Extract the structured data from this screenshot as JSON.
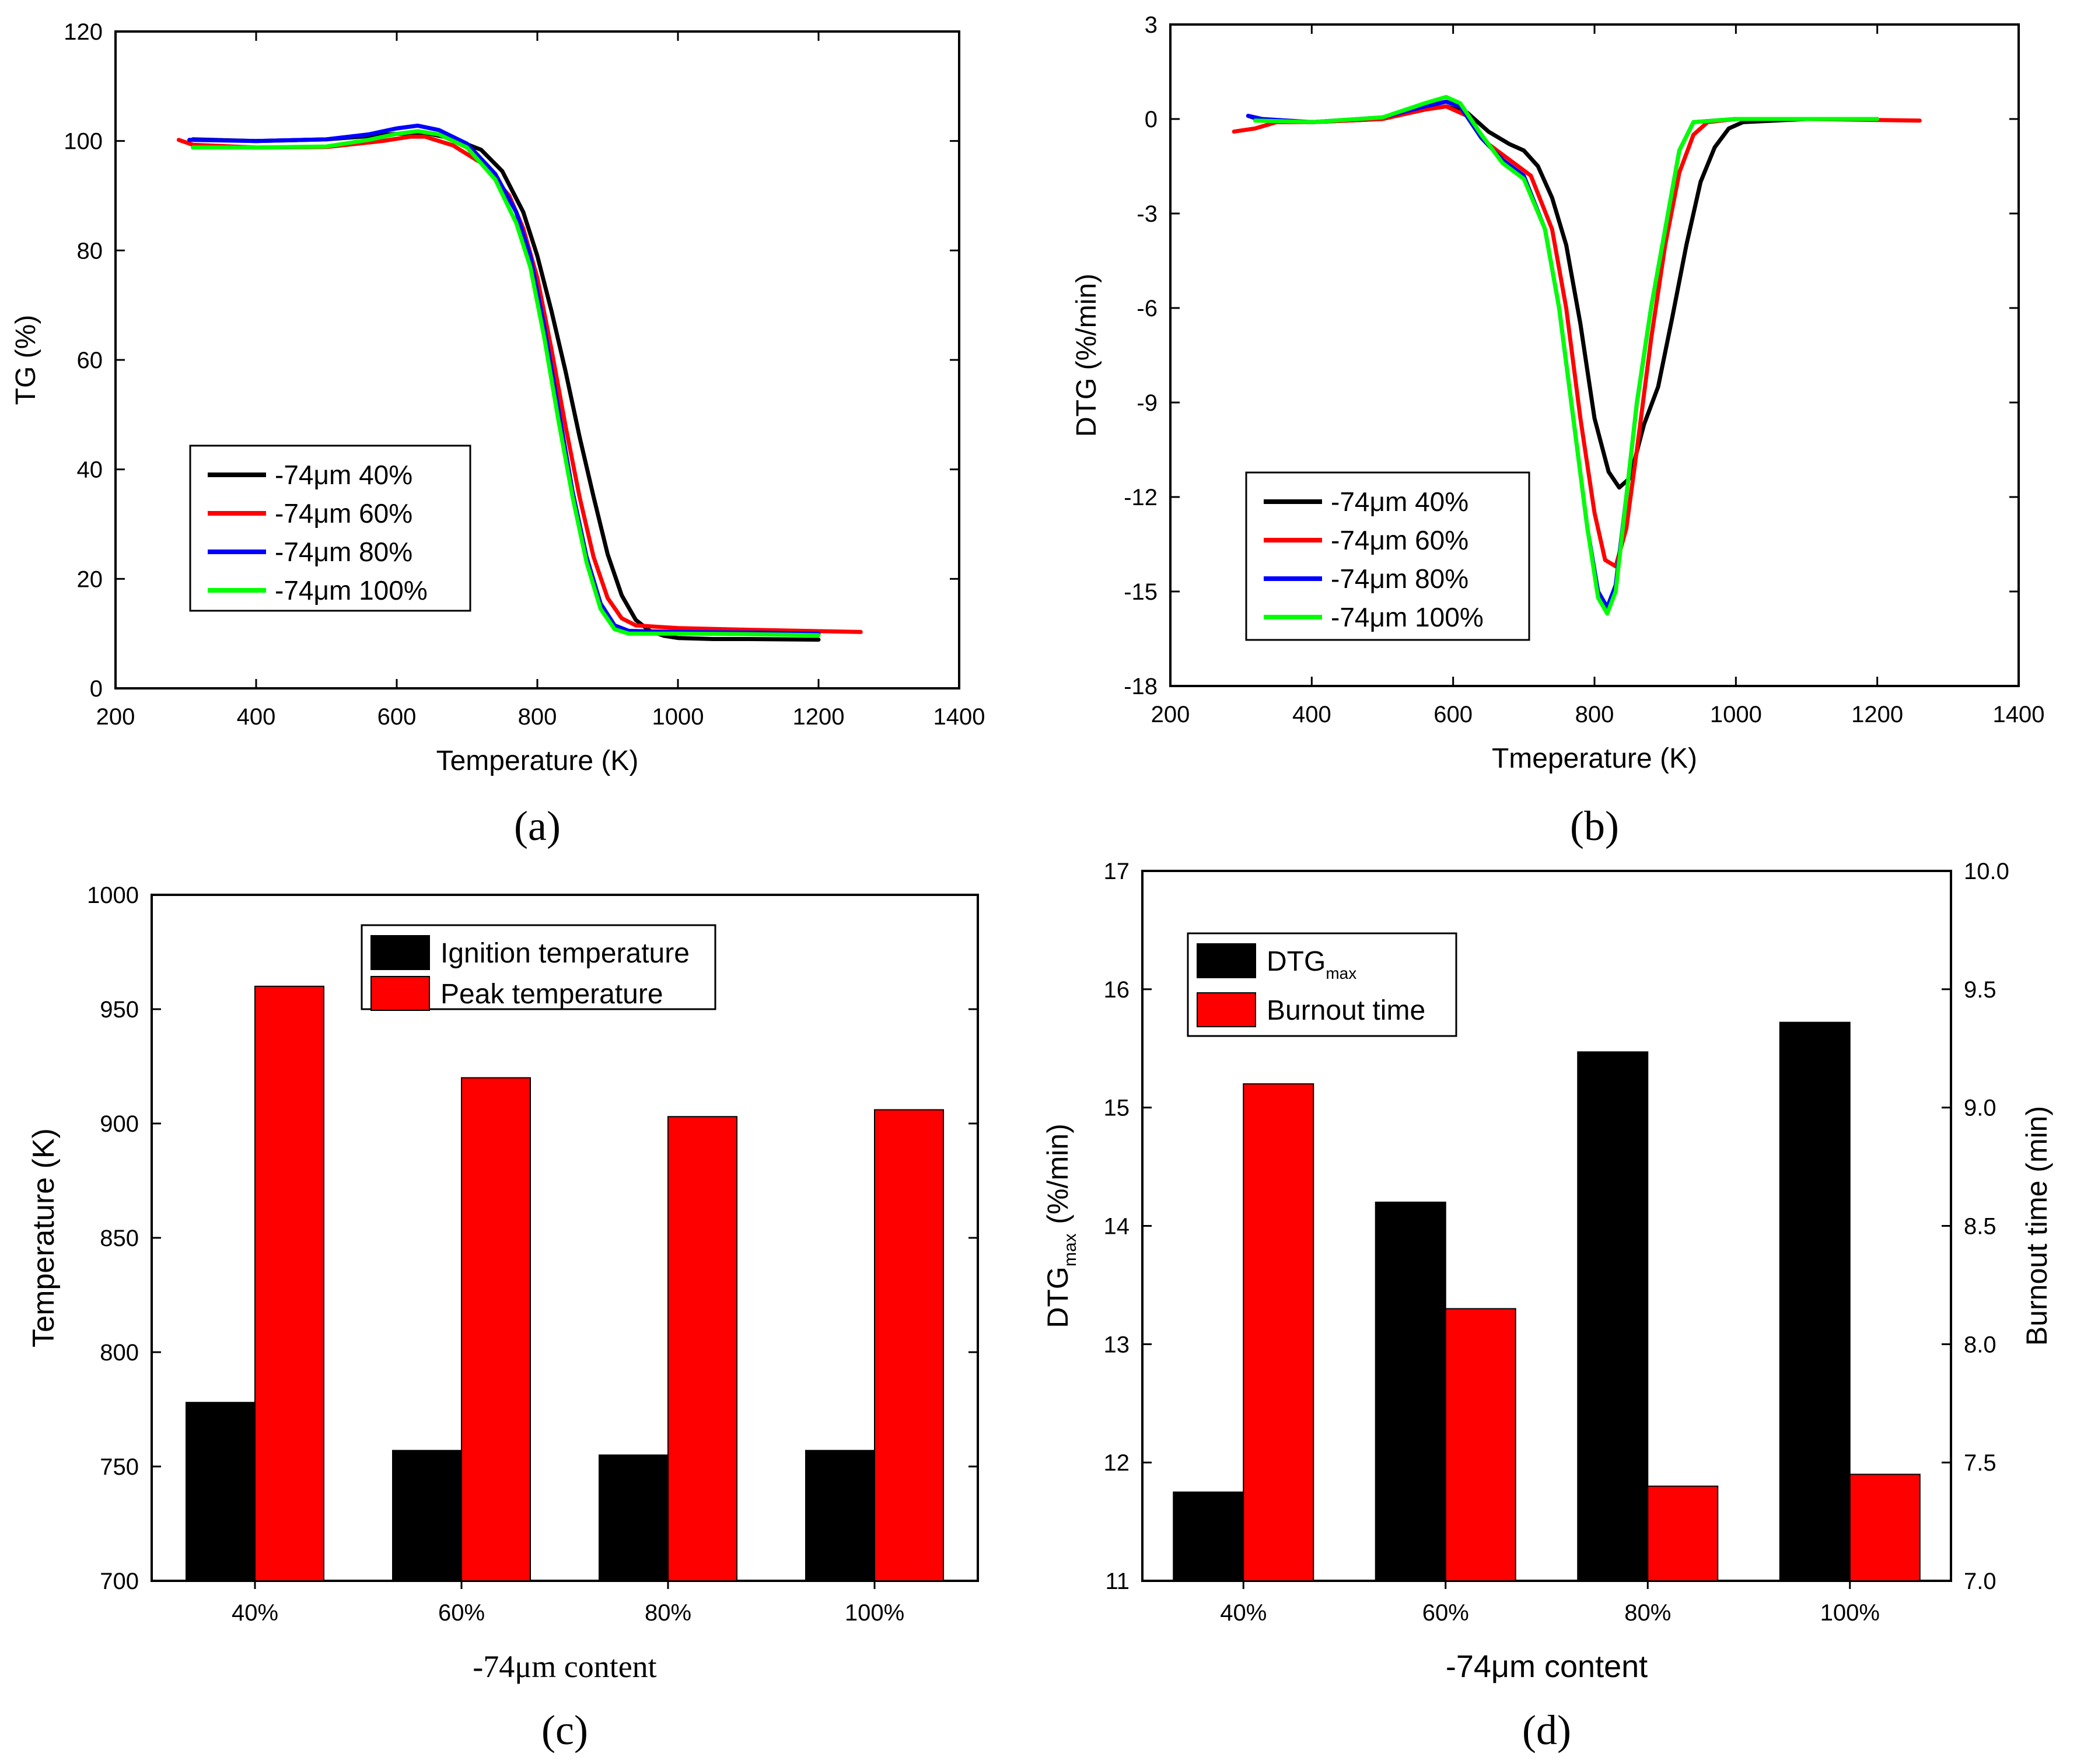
{
  "charts": [
    {
      "type": "line",
      "panel_label": "(a)",
      "xlabel": "Temperature (K)",
      "ylabel": "TG (%)",
      "xlim": [
        200,
        1400
      ],
      "ylim": [
        0,
        120
      ],
      "xticks": [
        200,
        400,
        600,
        800,
        1000,
        1200,
        1400
      ],
      "yticks": [
        0,
        20,
        40,
        60,
        80,
        100,
        120
      ],
      "legend_position": "lower-left",
      "series": [
        {
          "name": "-74μm 40%",
          "color": "#000000",
          "points": [
            [
              310,
              100.3
            ],
            [
              400,
              100
            ],
            [
              500,
              100.3
            ],
            [
              600,
              101.3
            ],
            [
              640,
              101.5
            ],
            [
              680,
              100.4
            ],
            [
              720,
              98.4
            ],
            [
              750,
              94.5
            ],
            [
              780,
              87
            ],
            [
              800,
              79
            ],
            [
              820,
              69
            ],
            [
              840,
              58
            ],
            [
              860,
              46
            ],
            [
              880,
              35
            ],
            [
              900,
              24.5
            ],
            [
              920,
              17
            ],
            [
              940,
              12.5
            ],
            [
              960,
              10.5
            ],
            [
              980,
              9.6
            ],
            [
              1000,
              9.2
            ],
            [
              1050,
              9
            ],
            [
              1100,
              9
            ],
            [
              1200,
              8.9
            ]
          ]
        },
        {
          "name": "-74μm 60%",
          "color": "#ff0000",
          "points": [
            [
              290,
              100.2
            ],
            [
              310,
              99.3
            ],
            [
              400,
              98.8
            ],
            [
              500,
              98.9
            ],
            [
              580,
              100
            ],
            [
              620,
              100.8
            ],
            [
              640,
              100.8
            ],
            [
              680,
              99.2
            ],
            [
              720,
              96
            ],
            [
              760,
              90
            ],
            [
              780,
              84
            ],
            [
              800,
              75
            ],
            [
              820,
              62
            ],
            [
              840,
              48
            ],
            [
              860,
              35
            ],
            [
              880,
              24
            ],
            [
              900,
              16.5
            ],
            [
              920,
              12.8
            ],
            [
              940,
              11.5
            ],
            [
              1000,
              11
            ],
            [
              1100,
              10.7
            ],
            [
              1260,
              10.3
            ]
          ]
        },
        {
          "name": "-74μm 80%",
          "color": "#0000ff",
          "points": [
            [
              305,
              100.2
            ],
            [
              400,
              100
            ],
            [
              500,
              100.3
            ],
            [
              560,
              101.2
            ],
            [
              600,
              102.3
            ],
            [
              630,
              102.8
            ],
            [
              660,
              102
            ],
            [
              700,
              99.5
            ],
            [
              740,
              94
            ],
            [
              770,
              87
            ],
            [
              790,
              79
            ],
            [
              810,
              66
            ],
            [
              830,
              51
            ],
            [
              850,
              36
            ],
            [
              870,
              24
            ],
            [
              890,
              15.5
            ],
            [
              910,
              11.5
            ],
            [
              930,
              10.5
            ],
            [
              1000,
              10.3
            ],
            [
              1100,
              10.2
            ],
            [
              1200,
              10
            ]
          ]
        },
        {
          "name": "-74μm 100%",
          "color": "#00ff00",
          "points": [
            [
              310,
              98.8
            ],
            [
              400,
              98.8
            ],
            [
              500,
              99
            ],
            [
              560,
              100.2
            ],
            [
              600,
              101.3
            ],
            [
              630,
              101.8
            ],
            [
              660,
              101.2
            ],
            [
              700,
              98.8
            ],
            [
              740,
              93
            ],
            [
              770,
              85
            ],
            [
              790,
              77
            ],
            [
              810,
              64
            ],
            [
              830,
              49
            ],
            [
              850,
              35
            ],
            [
              870,
              23
            ],
            [
              890,
              14.5
            ],
            [
              910,
              10.8
            ],
            [
              930,
              10
            ],
            [
              1000,
              10
            ],
            [
              1100,
              9.9
            ],
            [
              1200,
              9.7
            ]
          ]
        }
      ]
    },
    {
      "type": "line",
      "panel_label": "(b)",
      "xlabel": "Tmeperature (K)",
      "ylabel": "DTG (%/min)",
      "xlim": [
        200,
        1400
      ],
      "ylim": [
        -18,
        3
      ],
      "xticks": [
        200,
        400,
        600,
        800,
        1000,
        1200,
        1400
      ],
      "yticks": [
        -18,
        -15,
        -12,
        -9,
        -6,
        -3,
        0,
        3
      ],
      "legend_position": "lower-left",
      "series": [
        {
          "name": "-74μm 40%",
          "color": "#000000",
          "points": [
            [
              310,
              0.1
            ],
            [
              330,
              -0.05
            ],
            [
              400,
              -0.1
            ],
            [
              500,
              0
            ],
            [
              560,
              0.3
            ],
            [
              590,
              0.4
            ],
            [
              620,
              0.2
            ],
            [
              650,
              -0.4
            ],
            [
              680,
              -0.8
            ],
            [
              700,
              -1
            ],
            [
              720,
              -1.5
            ],
            [
              740,
              -2.5
            ],
            [
              760,
              -4
            ],
            [
              780,
              -6.5
            ],
            [
              800,
              -9.5
            ],
            [
              820,
              -11.2
            ],
            [
              835,
              -11.7
            ],
            [
              850,
              -11.4
            ],
            [
              870,
              -9.7
            ],
            [
              890,
              -8.5
            ],
            [
              910,
              -6.3
            ],
            [
              930,
              -4
            ],
            [
              950,
              -2
            ],
            [
              970,
              -0.9
            ],
            [
              990,
              -0.3
            ],
            [
              1010,
              -0.1
            ],
            [
              1100,
              0
            ],
            [
              1200,
              0
            ]
          ]
        },
        {
          "name": "-74μm 60%",
          "color": "#ff0000",
          "points": [
            [
              290,
              -0.4
            ],
            [
              320,
              -0.3
            ],
            [
              350,
              -0.1
            ],
            [
              400,
              -0.1
            ],
            [
              500,
              0
            ],
            [
              560,
              0.3
            ],
            [
              590,
              0.4
            ],
            [
              620,
              0.1
            ],
            [
              650,
              -0.8
            ],
            [
              680,
              -1.3
            ],
            [
              710,
              -1.8
            ],
            [
              740,
              -3.5
            ],
            [
              760,
              -6
            ],
            [
              780,
              -9.5
            ],
            [
              800,
              -12.5
            ],
            [
              815,
              -14
            ],
            [
              830,
              -14.2
            ],
            [
              845,
              -13
            ],
            [
              860,
              -10.5
            ],
            [
              880,
              -7
            ],
            [
              900,
              -4
            ],
            [
              920,
              -1.7
            ],
            [
              940,
              -0.5
            ],
            [
              960,
              -0.1
            ],
            [
              1000,
              0
            ],
            [
              1100,
              0
            ],
            [
              1260,
              -0.05
            ]
          ]
        },
        {
          "name": "-74μm 80%",
          "color": "#0000ff",
          "points": [
            [
              310,
              0.1
            ],
            [
              330,
              0
            ],
            [
              400,
              -0.1
            ],
            [
              500,
              0.05
            ],
            [
              560,
              0.4
            ],
            [
              590,
              0.55
            ],
            [
              610,
              0.4
            ],
            [
              640,
              -0.6
            ],
            [
              670,
              -1.3
            ],
            [
              700,
              -1.8
            ],
            [
              730,
              -3.5
            ],
            [
              750,
              -6
            ],
            [
              770,
              -9.5
            ],
            [
              790,
              -13
            ],
            [
              805,
              -15
            ],
            [
              818,
              -15.5
            ],
            [
              830,
              -14.8
            ],
            [
              845,
              -12
            ],
            [
              860,
              -9
            ],
            [
              880,
              -6
            ],
            [
              900,
              -3.5
            ],
            [
              920,
              -1
            ],
            [
              940,
              -0.1
            ],
            [
              1000,
              0
            ],
            [
              1100,
              0
            ],
            [
              1200,
              0
            ]
          ]
        },
        {
          "name": "-74μm 100%",
          "color": "#00ff00",
          "points": [
            [
              320,
              -0.05
            ],
            [
              400,
              -0.1
            ],
            [
              500,
              0.05
            ],
            [
              560,
              0.5
            ],
            [
              590,
              0.7
            ],
            [
              610,
              0.5
            ],
            [
              640,
              -0.5
            ],
            [
              670,
              -1.4
            ],
            [
              700,
              -1.9
            ],
            [
              730,
              -3.5
            ],
            [
              750,
              -6
            ],
            [
              770,
              -9.5
            ],
            [
              790,
              -13
            ],
            [
              805,
              -15.2
            ],
            [
              818,
              -15.7
            ],
            [
              830,
              -15
            ],
            [
              845,
              -12
            ],
            [
              860,
              -9
            ],
            [
              880,
              -6
            ],
            [
              900,
              -3.5
            ],
            [
              920,
              -1
            ],
            [
              940,
              -0.1
            ],
            [
              1000,
              0
            ],
            [
              1100,
              0
            ],
            [
              1200,
              0
            ]
          ]
        }
      ]
    },
    {
      "type": "bar",
      "panel_label": "(c)",
      "xlabel": "-74μm content",
      "ylabel": "Temperature (K)",
      "categories": [
        "40%",
        "60%",
        "80%",
        "100%"
      ],
      "ylim": [
        700,
        1000
      ],
      "yticks": [
        700,
        750,
        800,
        850,
        900,
        950,
        1000
      ],
      "legend_position": "top-center",
      "series": [
        {
          "name": "Ignition temperature",
          "color": "#000000",
          "values": [
            778,
            757,
            755,
            757
          ]
        },
        {
          "name": "Peak temperature",
          "color": "#ff0000",
          "values": [
            960,
            920,
            903,
            906
          ]
        }
      ]
    },
    {
      "type": "bar",
      "panel_label": "(d)",
      "xlabel": "-74μm content",
      "ylabel_main": "DTG",
      "ylabel_sub": "max",
      "ylabel_unit": "(%/min)",
      "y2label": "Burnout time (min)",
      "categories": [
        "40%",
        "60%",
        "80%",
        "100%"
      ],
      "ylim": [
        11,
        17
      ],
      "yticks": [
        "11",
        "12",
        "13",
        "14",
        "15",
        "16",
        "17"
      ],
      "y2lim": [
        7.0,
        10.0
      ],
      "y2ticks": [
        "7.0",
        "7.5",
        "8.0",
        "8.5",
        "9.0",
        "9.5",
        "10.0"
      ],
      "legend_position": "top-left",
      "series": [
        {
          "name_main": "DTG",
          "name_sub": "max",
          "axis": "left",
          "color": "#000000",
          "values": [
            11.75,
            14.2,
            15.47,
            15.72
          ]
        },
        {
          "name": "Burnout time",
          "axis": "right",
          "color": "#ff0000",
          "values": [
            9.1,
            8.15,
            7.4,
            7.45
          ]
        }
      ]
    }
  ]
}
